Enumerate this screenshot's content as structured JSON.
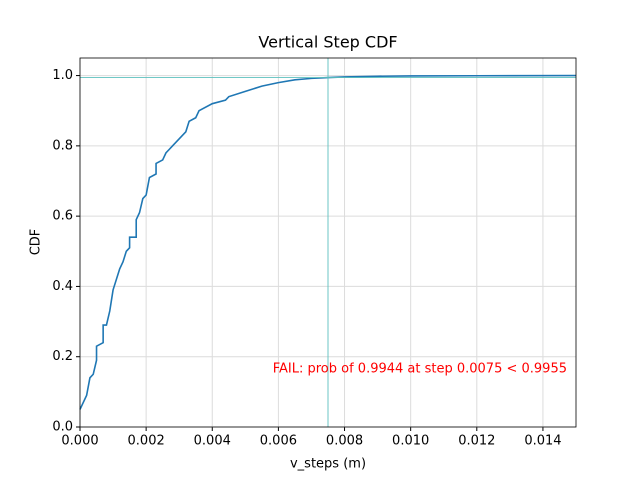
{
  "chart_data": {
    "type": "line",
    "title": "Vertical Step CDF",
    "x_label": "v_steps (m)",
    "y_label": "CDF",
    "x": [
      0,
      0.0002,
      0.0003,
      0.0004,
      0.0005,
      0.0005,
      0.0007,
      0.0007,
      0.0008,
      0.0009,
      0.001,
      0.0012,
      0.0013,
      0.0014,
      0.0015,
      0.0015,
      0.0017,
      0.0017,
      0.0018,
      0.0019,
      0.002,
      0.0021,
      0.0023,
      0.0023,
      0.0025,
      0.0026,
      0.0027,
      0.0028,
      0.003,
      0.0032,
      0.0033,
      0.0035,
      0.0036,
      0.004,
      0.0044,
      0.0045,
      0.005,
      0.0055,
      0.006,
      0.0065,
      0.007,
      0.0075,
      0.008,
      0.009,
      0.01,
      0.012,
      0.015
    ],
    "values": [
      0.05,
      0.09,
      0.14,
      0.15,
      0.19,
      0.23,
      0.24,
      0.29,
      0.29,
      0.33,
      0.39,
      0.45,
      0.47,
      0.5,
      0.51,
      0.54,
      0.54,
      0.59,
      0.61,
      0.65,
      0.66,
      0.71,
      0.72,
      0.75,
      0.76,
      0.78,
      0.79,
      0.8,
      0.82,
      0.84,
      0.87,
      0.88,
      0.9,
      0.92,
      0.93,
      0.94,
      0.955,
      0.97,
      0.98,
      0.988,
      0.992,
      0.9944,
      0.996,
      0.998,
      0.999,
      0.9995,
      1.0
    ],
    "color": "#1f77b4",
    "xlim": [
      0,
      0.015
    ],
    "ylim": [
      0,
      1.05
    ],
    "xticks": [
      {
        "value": 0,
        "label": "0.000"
      },
      {
        "value": 0.002,
        "label": "0.002"
      },
      {
        "value": 0.004,
        "label": "0.004"
      },
      {
        "value": 0.006,
        "label": "0.006"
      },
      {
        "value": 0.008,
        "label": "0.008"
      },
      {
        "value": 0.01,
        "label": "0.010"
      },
      {
        "value": 0.012,
        "label": "0.012"
      },
      {
        "value": 0.014,
        "label": "0.014"
      }
    ],
    "yticks": [
      {
        "value": 0,
        "label": "0.0"
      },
      {
        "value": 0.2,
        "label": "0.2"
      },
      {
        "value": 0.4,
        "label": "0.4"
      },
      {
        "value": 0.6,
        "label": "0.6"
      },
      {
        "value": 0.8,
        "label": "0.8"
      },
      {
        "value": 1,
        "label": "1.0"
      }
    ],
    "grid": true,
    "reference_lines": {
      "x": 0.0075,
      "y": 0.9944,
      "color": "#5bc0be"
    },
    "annotation": {
      "text": "FAIL: prob of 0.9944 at step 0.0075 < 0.9955",
      "color": "#ff0000"
    }
  }
}
